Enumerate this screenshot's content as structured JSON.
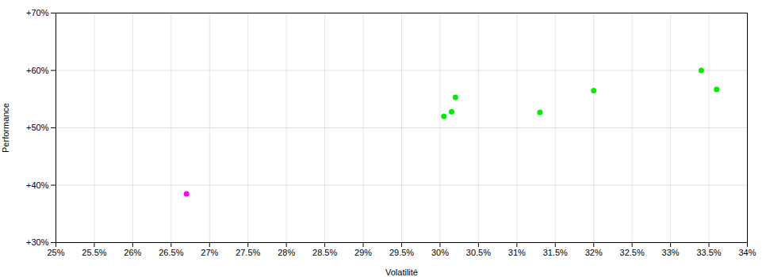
{
  "chart_data": {
    "type": "scatter",
    "x_label": "Volatilité",
    "y_label": "Performance",
    "x": [
      0.267,
      0.302,
      0.3015,
      0.3005,
      0.313,
      0.32,
      0.334,
      0.336
    ],
    "values": [
      0.385,
      0.553,
      0.528,
      0.52,
      0.527,
      0.565,
      0.6,
      0.567
    ],
    "colors": [
      "#ff00ff",
      "#00ee00",
      "#00ee00",
      "#00ee00",
      "#00ee00",
      "#00ee00",
      "#00ee00",
      "#00ee00"
    ],
    "xlim": [
      0.25,
      0.34
    ],
    "ylim": [
      0.3,
      0.7
    ],
    "xticks": [
      {
        "value": 0.25,
        "label": "25%"
      },
      {
        "value": 0.255,
        "label": "25.5%"
      },
      {
        "value": 0.26,
        "label": "26%"
      },
      {
        "value": 0.265,
        "label": "26.5%"
      },
      {
        "value": 0.27,
        "label": "27%"
      },
      {
        "value": 0.275,
        "label": "27.5%"
      },
      {
        "value": 0.28,
        "label": "28%"
      },
      {
        "value": 0.285,
        "label": "28.5%"
      },
      {
        "value": 0.29,
        "label": "29%"
      },
      {
        "value": 0.295,
        "label": "29.5%"
      },
      {
        "value": 0.3,
        "label": "30%"
      },
      {
        "value": 0.305,
        "label": "30.5%"
      },
      {
        "value": 0.31,
        "label": "31%"
      },
      {
        "value": 0.315,
        "label": "31.5%"
      },
      {
        "value": 0.32,
        "label": "32%"
      },
      {
        "value": 0.325,
        "label": "32.5%"
      },
      {
        "value": 0.33,
        "label": "33%"
      },
      {
        "value": 0.335,
        "label": "33.5%"
      },
      {
        "value": 0.34,
        "label": "34%"
      }
    ],
    "yticks": [
      {
        "value": 0.3,
        "label": "+30%"
      },
      {
        "value": 0.4,
        "label": "+40%"
      },
      {
        "value": 0.5,
        "label": "+50%"
      },
      {
        "value": 0.6,
        "label": "+60%"
      },
      {
        "value": 0.7,
        "label": "+70%"
      }
    ],
    "grid": true,
    "marker": "circle"
  }
}
